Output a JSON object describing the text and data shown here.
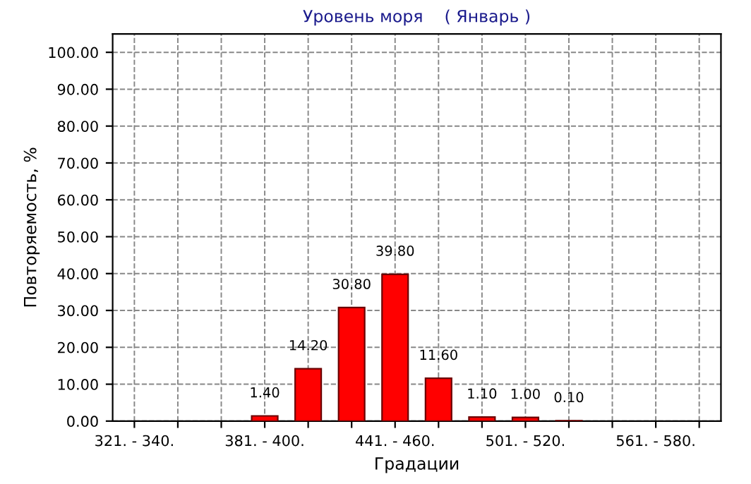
{
  "chart_data": {
    "type": "bar",
    "title": "Уровень моря    ( Январь )",
    "xlabel": "Градации",
    "ylabel": "Повторяемость, %",
    "categories": [
      "321. - 340.",
      null,
      null,
      "381. - 400.",
      null,
      null,
      "441. - 460.",
      null,
      null,
      "501. - 520.",
      null,
      null,
      "561. - 580.",
      null
    ],
    "values": [
      null,
      null,
      null,
      1.4,
      14.2,
      30.8,
      39.8,
      11.6,
      1.1,
      1.0,
      0.1,
      null,
      null,
      null
    ],
    "value_labels": [
      null,
      null,
      null,
      "1.40",
      "14.20",
      "30.80",
      "39.80",
      "11.60",
      "1.10",
      "1.00",
      "0.10",
      null,
      null,
      null
    ],
    "color": "#ff0000",
    "ylim": [
      0,
      105
    ],
    "yticks": [
      {
        "value": 0,
        "label": "0.00"
      },
      {
        "value": 10,
        "label": "10.00"
      },
      {
        "value": 20,
        "label": "20.00"
      },
      {
        "value": 30,
        "label": "30.00"
      },
      {
        "value": 40,
        "label": "40.00"
      },
      {
        "value": 50,
        "label": "50.00"
      },
      {
        "value": 60,
        "label": "60.00"
      },
      {
        "value": 70,
        "label": "70.00"
      },
      {
        "value": 80,
        "label": "80.00"
      },
      {
        "value": 90,
        "label": "90.00"
      },
      {
        "value": 100,
        "label": "100.00"
      }
    ],
    "grid": true
  }
}
